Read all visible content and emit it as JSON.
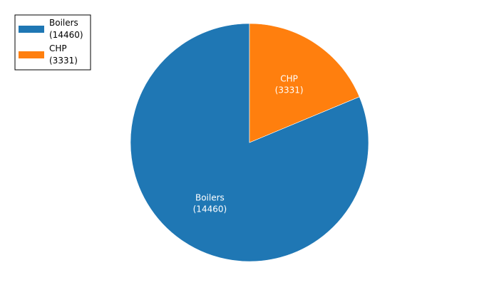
{
  "chart_data": {
    "type": "pie",
    "categories": [
      "Boilers",
      "CHP"
    ],
    "values": [
      14460,
      3331
    ],
    "slice_labels": [
      {
        "name": "Boilers",
        "value_text": "(14460)"
      },
      {
        "name": "CHP",
        "value_text": "(3331)"
      }
    ],
    "legend": [
      {
        "name": "Boilers",
        "value_text": "(14460)"
      },
      {
        "name": "CHP",
        "value_text": "(3331)"
      }
    ],
    "legend_placement": "top-left",
    "colors": [
      "#1f77b4",
      "#ff7f0e"
    ],
    "title": ""
  }
}
